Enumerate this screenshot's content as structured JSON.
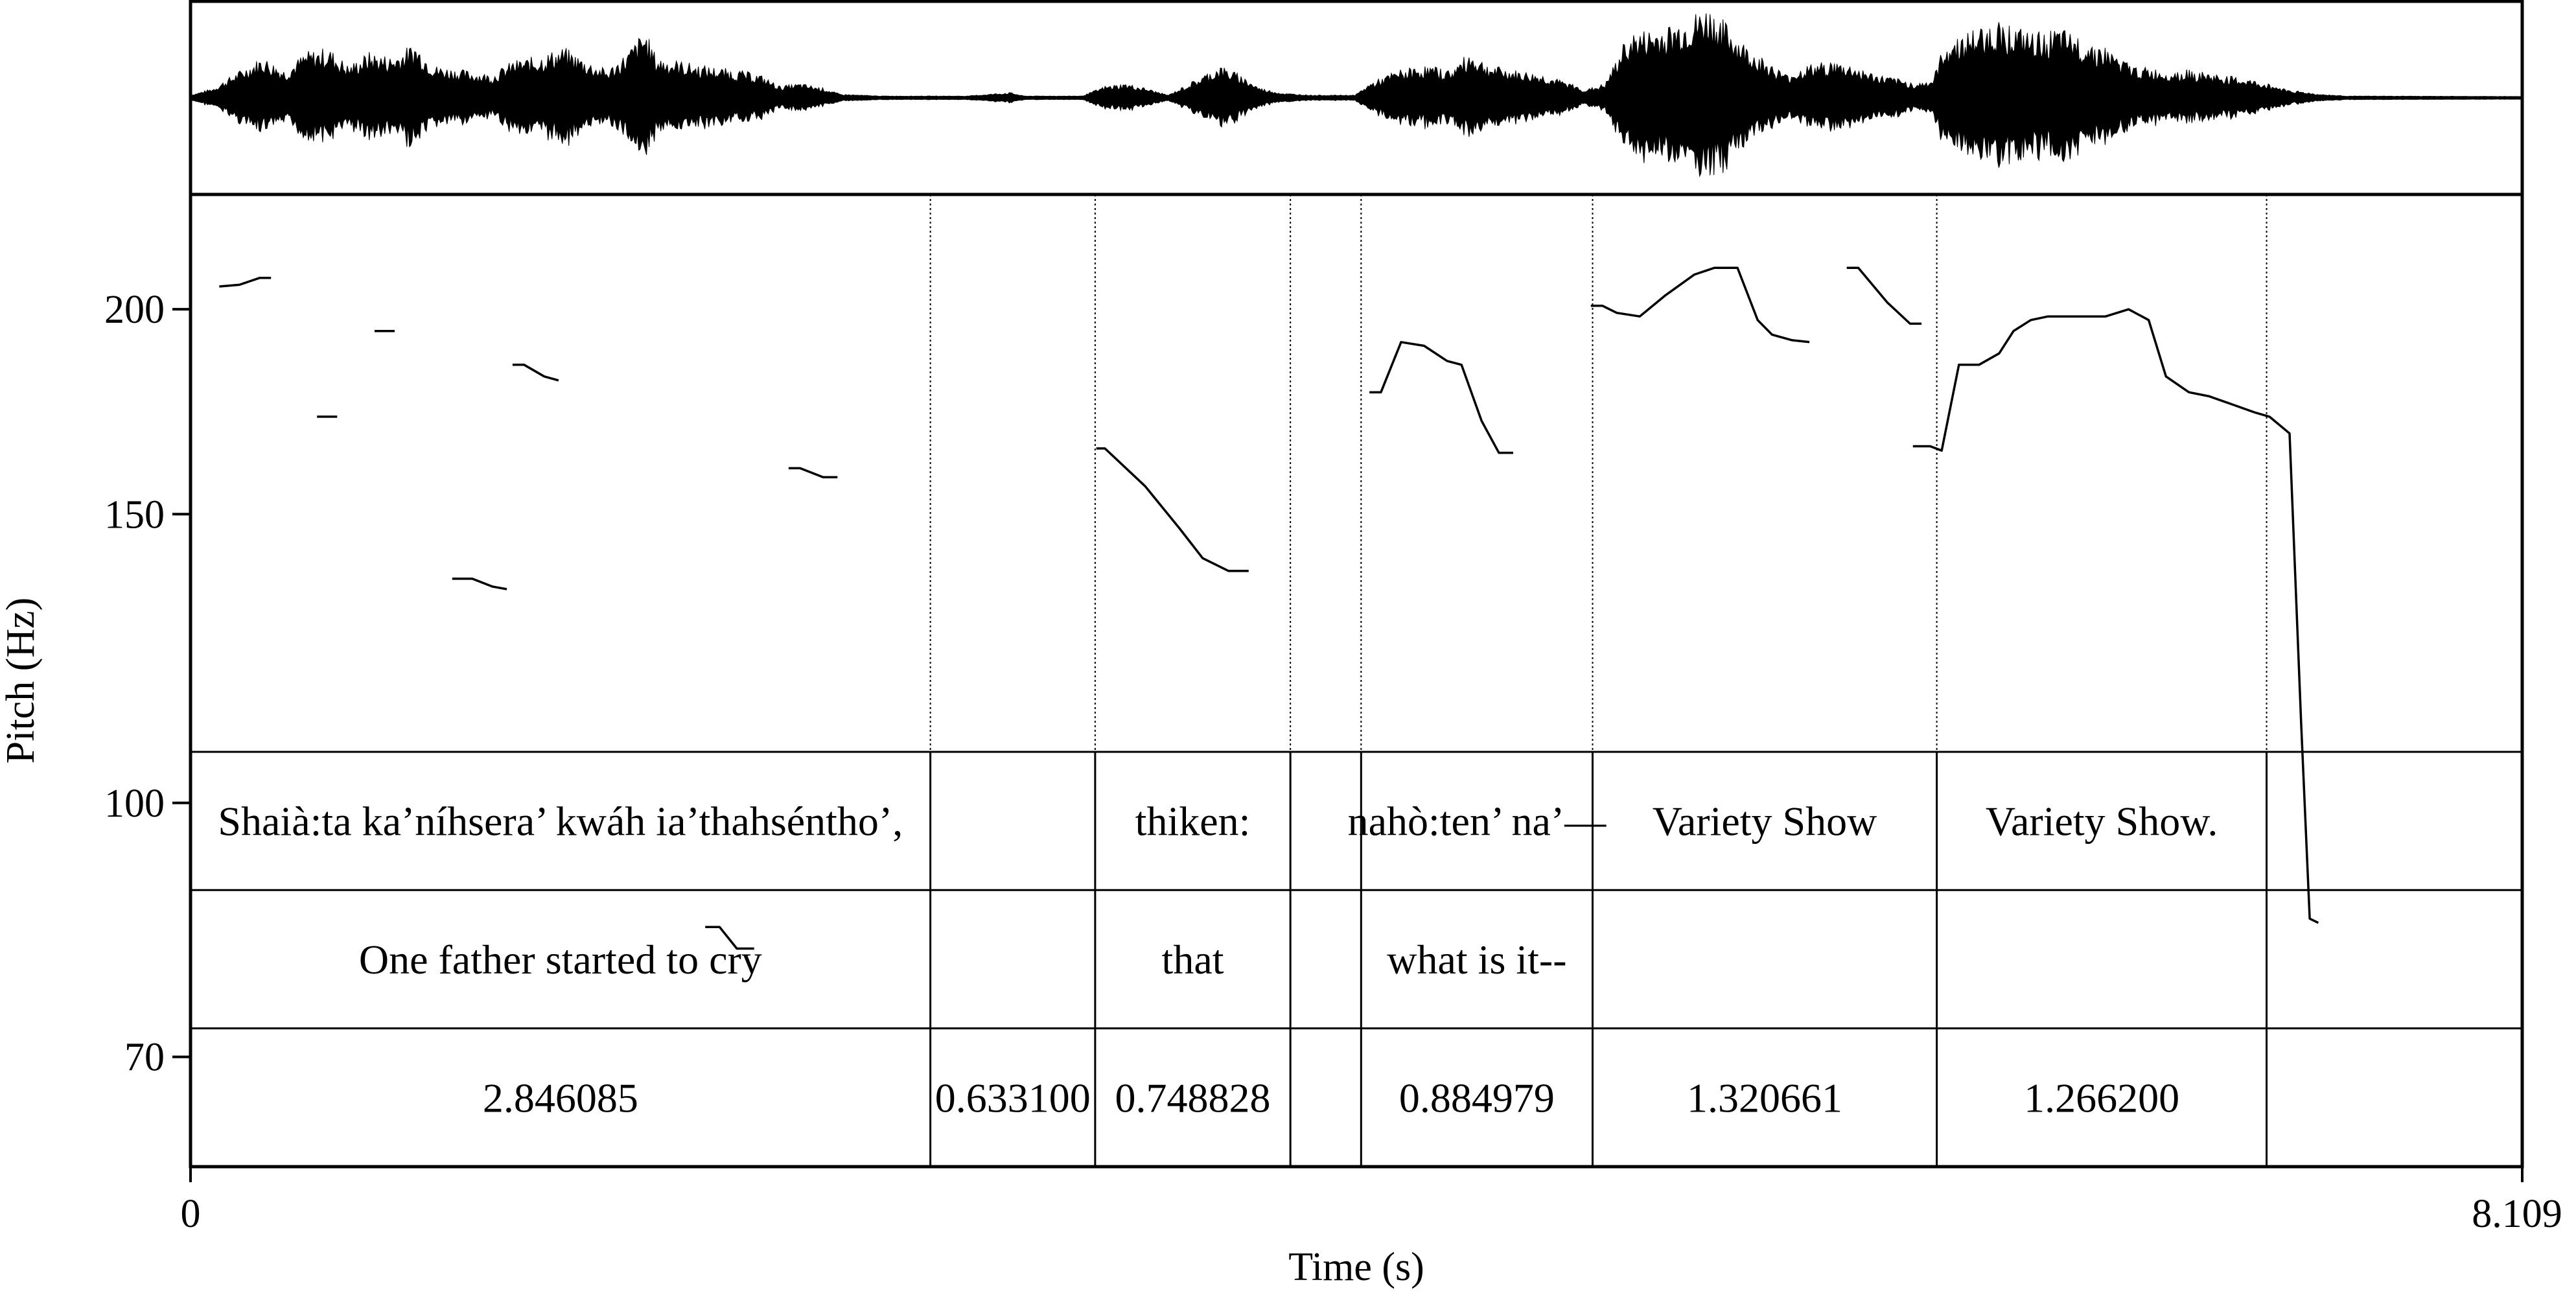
{
  "chart_data": {
    "type": "line",
    "xlabel": "Time (s)",
    "ylabel": "Pitch (Hz)",
    "xlim": [
      0,
      8.109
    ],
    "ylim": [
      60,
      235
    ],
    "y_scale": "log",
    "x_tick_labels": [
      "0",
      "8.109"
    ],
    "y_ticks": [
      70,
      100,
      150,
      200
    ],
    "y_tick_labels": [
      "70",
      "100",
      "150",
      "200"
    ],
    "grid": false,
    "interval_boundaries": [
      2.573,
      3.146,
      3.825,
      4.071,
      4.876,
      6.073,
      7.22
    ],
    "pitch_segments": [
      [
        [
          0.1,
          206.5
        ],
        [
          0.17,
          207
        ],
        [
          0.24,
          209
        ],
        [
          0.28,
          209
        ]
      ],
      [
        [
          0.44,
          172
        ],
        [
          0.51,
          172
        ]
      ],
      [
        [
          0.64,
          194
        ],
        [
          0.71,
          194
        ]
      ],
      [
        [
          0.91,
          137
        ],
        [
          0.98,
          137
        ],
        [
          1.05,
          135.5
        ],
        [
          1.1,
          135
        ]
      ],
      [
        [
          1.12,
          185
        ],
        [
          1.16,
          185
        ],
        [
          1.23,
          182
        ],
        [
          1.28,
          181
        ]
      ],
      [
        [
          2.08,
          160
        ],
        [
          2.12,
          160
        ],
        [
          2.2,
          158
        ],
        [
          2.25,
          158
        ]
      ],
      [
        [
          3.15,
          164.5
        ],
        [
          3.18,
          164.5
        ],
        [
          3.32,
          156
        ],
        [
          3.44,
          147
        ],
        [
          3.52,
          141
        ],
        [
          3.61,
          138.5
        ],
        [
          3.68,
          138.5
        ]
      ],
      [
        [
          4.1,
          178
        ],
        [
          4.14,
          178
        ],
        [
          4.21,
          191
        ],
        [
          4.29,
          190
        ],
        [
          4.37,
          186
        ],
        [
          4.42,
          185
        ],
        [
          4.49,
          171
        ],
        [
          4.55,
          163.5
        ],
        [
          4.6,
          163.5
        ]
      ],
      [
        [
          4.87,
          201
        ],
        [
          4.91,
          201
        ],
        [
          4.96,
          199
        ],
        [
          5.04,
          198
        ],
        [
          5.13,
          204
        ],
        [
          5.23,
          210
        ],
        [
          5.3,
          212
        ],
        [
          5.38,
          212
        ],
        [
          5.45,
          197
        ],
        [
          5.5,
          193
        ],
        [
          5.57,
          191.5
        ],
        [
          5.63,
          191
        ]
      ],
      [
        [
          5.76,
          212
        ],
        [
          5.8,
          212
        ],
        [
          5.9,
          202
        ],
        [
          5.98,
          196
        ],
        [
          6.02,
          196
        ]
      ],
      [
        [
          5.99,
          165
        ],
        [
          6.05,
          165
        ],
        [
          6.09,
          164
        ],
        [
          6.15,
          185
        ],
        [
          6.22,
          185
        ],
        [
          6.29,
          188
        ],
        [
          6.34,
          194
        ],
        [
          6.4,
          197
        ],
        [
          6.46,
          198
        ],
        [
          6.56,
          198
        ],
        [
          6.66,
          198
        ],
        [
          6.74,
          200
        ],
        [
          6.81,
          197
        ],
        [
          6.87,
          182
        ],
        [
          6.95,
          178
        ],
        [
          7.02,
          177
        ],
        [
          7.1,
          175
        ],
        [
          7.18,
          173
        ],
        [
          7.23,
          172
        ],
        [
          7.3,
          168
        ],
        [
          7.34,
          112
        ],
        [
          7.37,
          85
        ],
        [
          7.4,
          84.5
        ]
      ],
      [
        [
          1.79,
          84
        ],
        [
          1.84,
          84
        ],
        [
          1.9,
          81.5
        ],
        [
          1.96,
          81.5
        ]
      ]
    ],
    "tiers": [
      {
        "name": "",
        "intervals": [
          {
            "start": 0,
            "end": 2.573,
            "text": "Shaià:ta ka’níhsera’ kwáh ia’thahséntho’,"
          },
          {
            "start": 2.573,
            "end": 3.146,
            "text": ""
          },
          {
            "start": 3.146,
            "end": 3.825,
            "text": "thiken:"
          },
          {
            "start": 3.825,
            "end": 4.071,
            "text": ""
          },
          {
            "start": 4.071,
            "end": 4.876,
            "text": "nahò:ten’ na’—"
          },
          {
            "start": 4.876,
            "end": 6.073,
            "text": "Variety Show"
          },
          {
            "start": 6.073,
            "end": 7.22,
            "text": "Variety Show."
          },
          {
            "start": 7.22,
            "end": 8.109,
            "text": ""
          }
        ]
      },
      {
        "name": "",
        "intervals": [
          {
            "start": 0,
            "end": 2.573,
            "text": "One father started to cry"
          },
          {
            "start": 2.573,
            "end": 3.146,
            "text": ""
          },
          {
            "start": 3.146,
            "end": 3.825,
            "text": "that"
          },
          {
            "start": 3.825,
            "end": 4.071,
            "text": ""
          },
          {
            "start": 4.071,
            "end": 4.876,
            "text": "what is it--"
          },
          {
            "start": 4.876,
            "end": 6.073,
            "text": ""
          },
          {
            "start": 6.073,
            "end": 7.22,
            "text": ""
          },
          {
            "start": 7.22,
            "end": 8.109,
            "text": ""
          }
        ]
      },
      {
        "name": "",
        "intervals": [
          {
            "start": 0,
            "end": 2.573,
            "text": "2.846085"
          },
          {
            "start": 2.573,
            "end": 3.146,
            "text": "0.633100"
          },
          {
            "start": 3.146,
            "end": 3.825,
            "text": "0.748828"
          },
          {
            "start": 3.825,
            "end": 4.071,
            "text": ""
          },
          {
            "start": 4.071,
            "end": 4.876,
            "text": "0.884979"
          },
          {
            "start": 4.876,
            "end": 6.073,
            "text": "1.320661"
          },
          {
            "start": 6.073,
            "end": 7.22,
            "text": "1.266200"
          },
          {
            "start": 7.22,
            "end": 8.109,
            "text": ""
          }
        ]
      }
    ],
    "waveform": {
      "amplitude_max": 1.0,
      "envelope": [
        [
          0.0,
          0.02
        ],
        [
          0.08,
          0.1
        ],
        [
          0.15,
          0.25
        ],
        [
          0.25,
          0.45
        ],
        [
          0.33,
          0.3
        ],
        [
          0.4,
          0.5
        ],
        [
          0.48,
          0.55
        ],
        [
          0.55,
          0.35
        ],
        [
          0.62,
          0.5
        ],
        [
          0.7,
          0.45
        ],
        [
          0.78,
          0.6
        ],
        [
          0.85,
          0.35
        ],
        [
          0.95,
          0.3
        ],
        [
          1.05,
          0.25
        ],
        [
          1.12,
          0.4
        ],
        [
          1.2,
          0.45
        ],
        [
          1.25,
          0.5
        ],
        [
          1.3,
          0.55
        ],
        [
          1.38,
          0.4
        ],
        [
          1.45,
          0.3
        ],
        [
          1.52,
          0.5
        ],
        [
          1.58,
          0.75
        ],
        [
          1.62,
          0.45
        ],
        [
          1.7,
          0.4
        ],
        [
          1.78,
          0.35
        ],
        [
          1.9,
          0.3
        ],
        [
          1.98,
          0.25
        ],
        [
          2.05,
          0.12
        ],
        [
          2.12,
          0.15
        ],
        [
          2.2,
          0.1
        ],
        [
          2.26,
          0.03
        ],
        [
          2.4,
          0.01
        ],
        [
          2.7,
          0.01
        ],
        [
          2.85,
          0.05
        ],
        [
          2.9,
          0.01
        ],
        [
          3.0,
          0.01
        ],
        [
          3.1,
          0.01
        ],
        [
          3.18,
          0.12
        ],
        [
          3.25,
          0.15
        ],
        [
          3.32,
          0.1
        ],
        [
          3.4,
          0.02
        ],
        [
          3.5,
          0.2
        ],
        [
          3.58,
          0.35
        ],
        [
          3.65,
          0.25
        ],
        [
          3.72,
          0.1
        ],
        [
          3.8,
          0.04
        ],
        [
          3.9,
          0.02
        ],
        [
          4.05,
          0.02
        ],
        [
          4.1,
          0.15
        ],
        [
          4.2,
          0.3
        ],
        [
          4.3,
          0.35
        ],
        [
          4.38,
          0.3
        ],
        [
          4.45,
          0.5
        ],
        [
          4.52,
          0.35
        ],
        [
          4.6,
          0.3
        ],
        [
          4.7,
          0.25
        ],
        [
          4.8,
          0.15
        ],
        [
          4.85,
          0.08
        ],
        [
          4.92,
          0.15
        ],
        [
          5.0,
          0.7
        ],
        [
          5.08,
          0.75
        ],
        [
          5.15,
          0.8
        ],
        [
          5.22,
          0.9
        ],
        [
          5.28,
          1.0
        ],
        [
          5.33,
          0.85
        ],
        [
          5.4,
          0.6
        ],
        [
          5.48,
          0.4
        ],
        [
          5.55,
          0.25
        ],
        [
          5.62,
          0.35
        ],
        [
          5.7,
          0.4
        ],
        [
          5.78,
          0.35
        ],
        [
          5.86,
          0.25
        ],
        [
          5.94,
          0.2
        ],
        [
          6.0,
          0.15
        ],
        [
          6.06,
          0.2
        ],
        [
          6.1,
          0.6
        ],
        [
          6.2,
          0.75
        ],
        [
          6.3,
          0.85
        ],
        [
          6.4,
          0.7
        ],
        [
          6.5,
          0.75
        ],
        [
          6.58,
          0.65
        ],
        [
          6.66,
          0.55
        ],
        [
          6.75,
          0.35
        ],
        [
          6.85,
          0.3
        ],
        [
          6.95,
          0.3
        ],
        [
          7.05,
          0.25
        ],
        [
          7.15,
          0.2
        ],
        [
          7.22,
          0.15
        ],
        [
          7.3,
          0.08
        ],
        [
          7.4,
          0.03
        ],
        [
          7.5,
          0.01
        ],
        [
          8.109,
          0.005
        ]
      ]
    }
  }
}
